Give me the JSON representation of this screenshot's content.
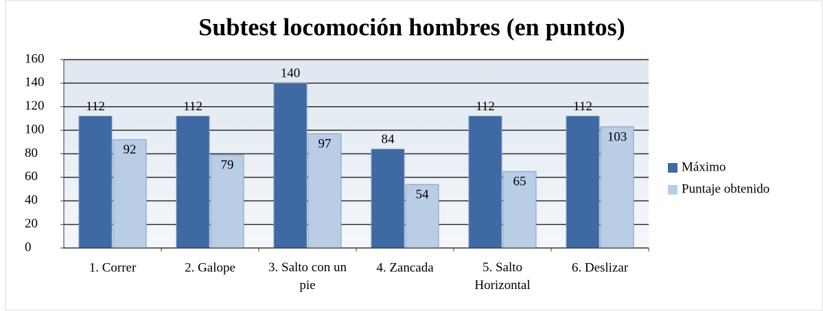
{
  "chart_data": {
    "type": "bar",
    "title": "Subtest locomoción hombres (en puntos)",
    "categories": [
      "1. Correr",
      "2. Galope",
      "3. Salto con un pie",
      "4. Zancada",
      "5. Salto Horizontal",
      "6. Deslizar"
    ],
    "series": [
      {
        "name": "Máximo",
        "color": "#3f69a3",
        "values": [
          112,
          112,
          140,
          84,
          112,
          112
        ]
      },
      {
        "name": "Puntaje obtenido",
        "color": "#b9cde5",
        "values": [
          92,
          79,
          97,
          54,
          65,
          103
        ]
      }
    ],
    "ylim": [
      0,
      160
    ],
    "yticks": [
      0,
      20,
      40,
      60,
      80,
      100,
      120,
      140,
      160
    ],
    "grid": true,
    "legend": "right"
  }
}
